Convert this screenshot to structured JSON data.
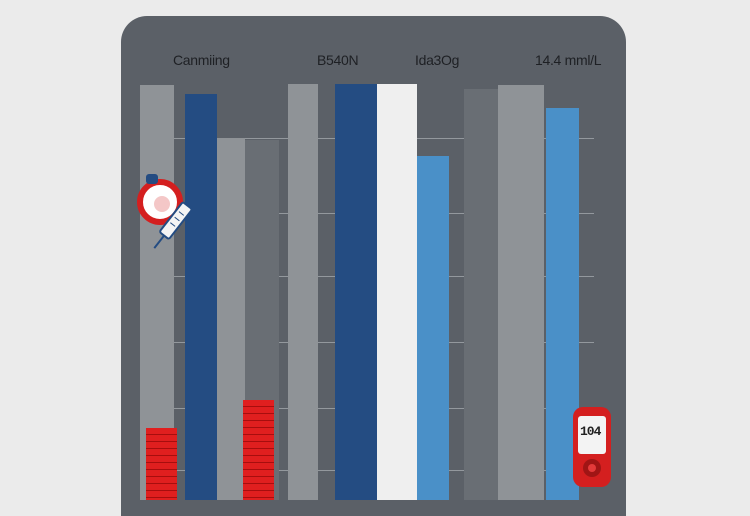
{
  "labels": {
    "left": "Canmiing",
    "center": "B540N",
    "right_mid": "Ida3Og",
    "right": "14.4 mml/L"
  },
  "meter": {
    "display": "104"
  },
  "icons": [
    "syringe-icon",
    "glucose-meter-icon"
  ],
  "colors": {
    "panel": "#5b6067",
    "gray_bar": "#8f9397",
    "dark_gray_bar": "#696e74",
    "navy_bar": "#244c82",
    "light_blue_bar": "#4a90c8",
    "white_bar": "#efefef",
    "red_gauge": "#e01f1f",
    "background": "#ebebeb"
  }
}
